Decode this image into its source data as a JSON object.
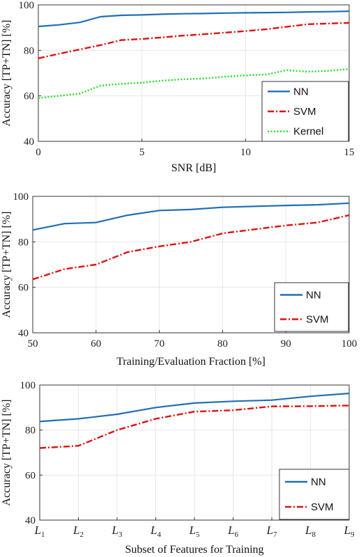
{
  "colors": {
    "NN": "#1f6fb5",
    "SVM": "#e01010",
    "Kernel": "#22dd22",
    "grid": "#e6e6e6",
    "axis": "#333333"
  },
  "chart_data": [
    {
      "type": "line",
      "xlabel": "SNR [dB]",
      "ylabel": "Accuracy [TP+TN] [%]",
      "xlim": [
        0,
        15
      ],
      "ylim": [
        40,
        100
      ],
      "xticks": [
        0,
        5,
        10,
        15
      ],
      "xtick_labels": [
        "0",
        "5",
        "10",
        "15"
      ],
      "yticks": [
        40,
        60,
        80,
        100
      ],
      "ytick_labels": [
        "40",
        "60",
        "80",
        "100"
      ],
      "grid": true,
      "legend_position": "bottom-right",
      "series": [
        {
          "name": "NN",
          "style": "solid",
          "x": [
            0,
            1,
            2,
            3,
            4,
            5,
            6,
            7,
            8,
            9,
            10,
            11,
            12,
            13,
            14,
            15
          ],
          "values": [
            90.5,
            91.2,
            92.3,
            94.8,
            95.4,
            95.6,
            95.9,
            96.1,
            96.2,
            96.4,
            96.5,
            96.6,
            96.7,
            96.9,
            97.0,
            97.2
          ]
        },
        {
          "name": "SVM",
          "style": "dashdot",
          "x": [
            0,
            1,
            2,
            3,
            4,
            5,
            6,
            7,
            8,
            9,
            10,
            11,
            12,
            13,
            14,
            15
          ],
          "values": [
            76.5,
            78.5,
            80.4,
            82.3,
            84.5,
            85.0,
            85.7,
            86.5,
            87.1,
            87.8,
            88.5,
            89.3,
            90.4,
            91.5,
            91.8,
            92.1
          ]
        },
        {
          "name": "Kernel",
          "style": "dotted",
          "x": [
            0,
            1,
            2,
            3,
            4,
            5,
            6,
            7,
            8,
            9,
            10,
            11,
            12,
            13,
            14,
            15
          ],
          "values": [
            59.0,
            60.0,
            61.0,
            64.5,
            65.3,
            65.8,
            66.7,
            67.3,
            67.6,
            68.4,
            69.0,
            69.4,
            71.3,
            70.6,
            71.0,
            71.8
          ]
        }
      ]
    },
    {
      "type": "line",
      "xlabel": "Training/Evaluation Fraction [%]",
      "ylabel": "Accuracy [TP+TN] [%]",
      "xlim": [
        50,
        100
      ],
      "ylim": [
        40,
        100
      ],
      "xticks": [
        50,
        60,
        70,
        80,
        90,
        100
      ],
      "xtick_labels": [
        "50",
        "60",
        "70",
        "80",
        "90",
        "100"
      ],
      "yticks": [
        40,
        60,
        80,
        100
      ],
      "ytick_labels": [
        "40",
        "60",
        "80",
        "100"
      ],
      "grid": true,
      "legend_position": "bottom-right",
      "series": [
        {
          "name": "NN",
          "style": "solid",
          "x": [
            50,
            55,
            60,
            65,
            70,
            75,
            80,
            85,
            90,
            95,
            100
          ],
          "values": [
            85.2,
            88.0,
            88.5,
            91.7,
            93.8,
            94.2,
            95.2,
            95.6,
            96.0,
            96.3,
            97.0
          ]
        },
        {
          "name": "SVM",
          "style": "dashdot",
          "x": [
            50,
            55,
            60,
            65,
            70,
            75,
            80,
            85,
            90,
            95,
            100
          ],
          "values": [
            63.5,
            68.0,
            70.0,
            75.5,
            78.0,
            80.0,
            83.7,
            85.5,
            87.2,
            88.5,
            91.7
          ]
        }
      ]
    },
    {
      "type": "line",
      "xlabel": "Subset of Features for Training",
      "ylabel": "Accuracy [TP+TN] [%]",
      "categories": [
        "L1",
        "L2",
        "L3",
        "L4",
        "L5",
        "L6",
        "L7",
        "L8",
        "L9"
      ],
      "ylim": [
        40,
        100
      ],
      "yticks": [
        40,
        60,
        80,
        100
      ],
      "ytick_labels": [
        "40",
        "60",
        "80",
        "100"
      ],
      "grid": true,
      "legend_position": "bottom-right",
      "series": [
        {
          "name": "NN",
          "style": "solid",
          "values": [
            83.8,
            85.0,
            87.0,
            90.0,
            92.0,
            92.8,
            93.3,
            95.0,
            96.3
          ]
        },
        {
          "name": "SVM",
          "style": "dashdot",
          "values": [
            72.0,
            73.0,
            80.0,
            85.0,
            88.2,
            88.8,
            90.5,
            90.6,
            90.9
          ]
        }
      ]
    }
  ]
}
